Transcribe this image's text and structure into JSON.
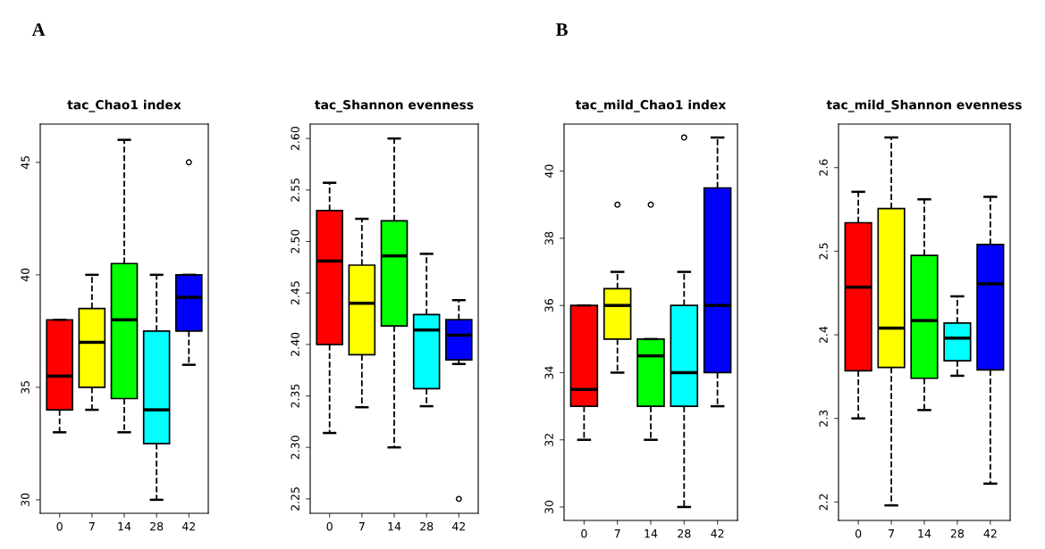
{
  "chart_data": [
    {
      "type": "box",
      "title": "tac_Chao1 index",
      "annotations": [
        "A"
      ],
      "categories": [
        "0",
        "7",
        "14",
        "28",
        "42"
      ],
      "colors": [
        "#ff0000",
        "#ffff00",
        "#00ff00",
        "#00ffff",
        "#0000ff"
      ],
      "ylim": [
        29.4,
        46.7
      ],
      "yticks": [
        30,
        35,
        40,
        45
      ],
      "grid": false,
      "line_style": "dashed",
      "marker": "circle",
      "boxes": [
        {
          "low": 33,
          "q1": 34,
          "median": 35.5,
          "q3": 38,
          "high": 38
        },
        {
          "low": 34,
          "q1": 35,
          "median": 37,
          "q3": 38.5,
          "high": 40
        },
        {
          "low": 33,
          "q1": 34.5,
          "median": 38,
          "q3": 40.5,
          "high": 46
        },
        {
          "low": 30,
          "q1": 32.5,
          "median": 34,
          "q3": 37.5,
          "high": 40
        },
        {
          "low": 36,
          "q1": 37.5,
          "median": 39,
          "q3": 40,
          "high": 40,
          "outliers": [
            45
          ]
        }
      ]
    },
    {
      "type": "box",
      "title": "tac_Shannon evenness",
      "categories": [
        "0",
        "7",
        "14",
        "28",
        "42"
      ],
      "colors": [
        "#ff0000",
        "#ffff00",
        "#00ff00",
        "#00ffff",
        "#0000ff"
      ],
      "ylim": [
        2.236,
        2.614
      ],
      "yticks": [
        {
          "value": 2.25,
          "label": "2.25"
        },
        {
          "value": 2.3,
          "label": "2.30"
        },
        {
          "value": 2.35,
          "label": "2.35"
        },
        {
          "value": 2.4,
          "label": "2.40"
        },
        {
          "value": 2.45,
          "label": "2.45"
        },
        {
          "value": 2.5,
          "label": "2.50"
        },
        {
          "value": 2.55,
          "label": "2.55"
        },
        {
          "value": 2.6,
          "label": "2.60"
        }
      ],
      "grid": false,
      "line_style": "dashed",
      "marker": "circle",
      "boxes": [
        {
          "low": 2.314,
          "q1": 2.4,
          "median": 2.481,
          "q3": 2.53,
          "high": 2.557
        },
        {
          "low": 2.339,
          "q1": 2.39,
          "median": 2.44,
          "q3": 2.477,
          "high": 2.522
        },
        {
          "low": 2.3,
          "q1": 2.418,
          "median": 2.486,
          "q3": 2.52,
          "high": 2.6
        },
        {
          "low": 2.34,
          "q1": 2.357,
          "median": 2.414,
          "q3": 2.429,
          "high": 2.488
        },
        {
          "low": 2.381,
          "q1": 2.385,
          "median": 2.409,
          "q3": 2.424,
          "high": 2.443,
          "outliers": [
            2.25
          ]
        }
      ]
    },
    {
      "type": "box",
      "title": "tac_mild_Chao1 index",
      "annotations": [
        "B"
      ],
      "categories": [
        "0",
        "7",
        "14",
        "28",
        "42"
      ],
      "colors": [
        "#ff0000",
        "#ffff00",
        "#00ff00",
        "#00ffff",
        "#0000ff"
      ],
      "ylim": [
        29.6,
        41.4
      ],
      "yticks": [
        30,
        32,
        34,
        36,
        38,
        40
      ],
      "grid": false,
      "line_style": "dashed",
      "marker": "circle",
      "boxes": [
        {
          "low": 32,
          "q1": 33,
          "median": 33.5,
          "q3": 36,
          "high": 36
        },
        {
          "low": 34,
          "q1": 35,
          "median": 36,
          "q3": 36.5,
          "high": 37,
          "outliers": [
            39
          ]
        },
        {
          "low": 32,
          "q1": 33,
          "median": 34.5,
          "q3": 35,
          "high": 35,
          "outliers": [
            39
          ]
        },
        {
          "low": 30,
          "q1": 33,
          "median": 34,
          "q3": 36,
          "high": 37,
          "outliers": [
            41
          ]
        },
        {
          "low": 33,
          "q1": 34,
          "median": 36,
          "q3": 39.5,
          "high": 41
        }
      ]
    },
    {
      "type": "box",
      "title": "tac_mild_Shannon evenness",
      "categories": [
        "0",
        "7",
        "14",
        "28",
        "42"
      ],
      "colors": [
        "#ff0000",
        "#ffff00",
        "#00ff00",
        "#00ffff",
        "#0000ff"
      ],
      "ylim": [
        2.178,
        2.652
      ],
      "yticks": [
        2.2,
        2.3,
        2.4,
        2.5,
        2.6
      ],
      "grid": false,
      "line_style": "dashed",
      "marker": "circle",
      "boxes": [
        {
          "low": 2.3,
          "q1": 2.357,
          "median": 2.457,
          "q3": 2.534,
          "high": 2.571
        },
        {
          "low": 2.196,
          "q1": 2.361,
          "median": 2.408,
          "q3": 2.551,
          "high": 2.636
        },
        {
          "low": 2.31,
          "q1": 2.348,
          "median": 2.417,
          "q3": 2.495,
          "high": 2.562
        },
        {
          "low": 2.351,
          "q1": 2.369,
          "median": 2.396,
          "q3": 2.414,
          "high": 2.446
        },
        {
          "low": 2.222,
          "q1": 2.358,
          "median": 2.461,
          "q3": 2.508,
          "high": 2.565
        }
      ]
    }
  ]
}
